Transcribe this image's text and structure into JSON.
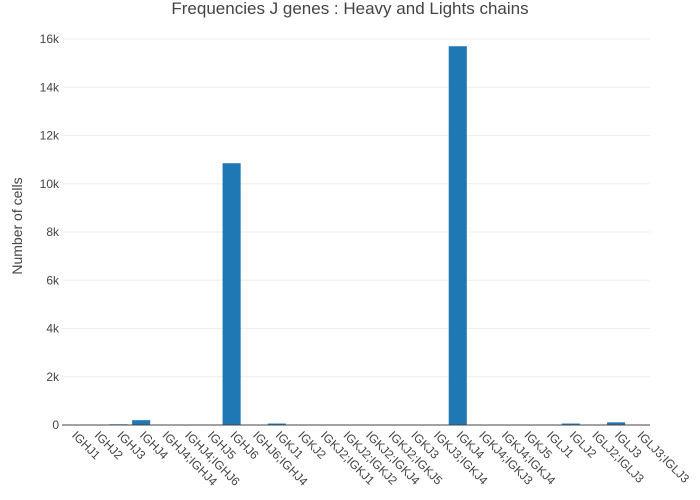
{
  "chart_data": {
    "type": "bar",
    "title": "Frequencies J genes : Heavy and Lights chains",
    "xlabel": "",
    "ylabel": "Number of cells",
    "ylim": [
      0,
      16000
    ],
    "yticks": [
      0,
      2000,
      4000,
      6000,
      8000,
      10000,
      12000,
      14000,
      16000
    ],
    "ytick_labels": [
      "0",
      "2k",
      "4k",
      "6k",
      "8k",
      "10k",
      "12k",
      "14k",
      "16k"
    ],
    "grid": true,
    "legend": "none",
    "bar_color": "#1f77b4",
    "categories": [
      "IGHJ1",
      "IGHJ2",
      "IGHJ3",
      "IGHJ4",
      "IGHJ4;IGHJ4",
      "IGHJ4;IGHJ6",
      "IGHJ5",
      "IGHJ6",
      "IGHJ6;IGHJ4",
      "IGKJ1",
      "IGKJ2",
      "IGKJ2;IGKJ1",
      "IGKJ2;IGKJ2",
      "IGKJ2;IGKJ4",
      "IGKJ2;IGKJ5",
      "IGKJ3",
      "IGKJ3;IGKJ4",
      "IGKJ4",
      "IGKJ4;IGKJ3",
      "IGKJ4;IGKJ4",
      "IGKJ5",
      "IGLJ1",
      "IGLJ2",
      "IGLJ2;IGLJ3",
      "IGLJ3",
      "IGLJ3;IGLJ3"
    ],
    "values": [
      5,
      10,
      30,
      200,
      2,
      2,
      20,
      10850,
      2,
      60,
      20,
      2,
      2,
      2,
      2,
      15,
      2,
      15700,
      2,
      2,
      15,
      5,
      60,
      5,
      110,
      2
    ]
  }
}
